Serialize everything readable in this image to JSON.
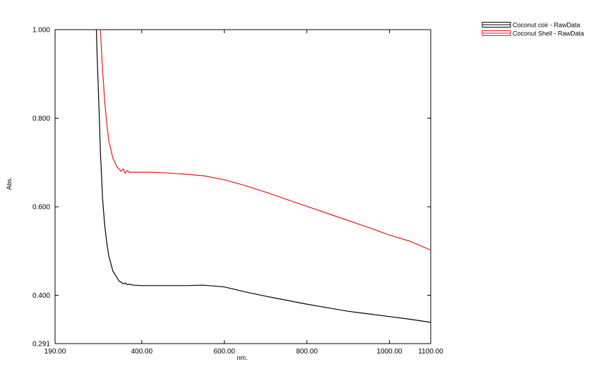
{
  "chart_data": {
    "type": "line",
    "xlabel": "nm.",
    "ylabel": "Abs.",
    "xlim": [
      190,
      1100
    ],
    "ylim": [
      0.291,
      1.0
    ],
    "x_ticks": [
      {
        "value": 190,
        "label": "190.00"
      },
      {
        "value": 400,
        "label": "400.00"
      },
      {
        "value": 600,
        "label": "600.00"
      },
      {
        "value": 800,
        "label": "800.00"
      },
      {
        "value": 1000,
        "label": "1000.00"
      },
      {
        "value": 1100,
        "label": "1100.00"
      }
    ],
    "y_ticks": [
      {
        "value": 0.291,
        "label": "0.291"
      },
      {
        "value": 0.4,
        "label": "0.400"
      },
      {
        "value": 0.6,
        "label": "0.600"
      },
      {
        "value": 0.8,
        "label": "0.800"
      },
      {
        "value": 1.0,
        "label": "1.000"
      }
    ],
    "legend_position": "top-right, outside plot",
    "grid": false,
    "series": [
      {
        "name": "Coconut coir - RawData",
        "color": "#000000",
        "x": [
          290,
          292,
          295,
          298,
          300,
          303,
          305,
          310,
          315,
          320,
          330,
          340,
          345,
          350,
          355,
          360,
          365,
          370,
          380,
          400,
          450,
          500,
          550,
          600,
          650,
          700,
          750,
          800,
          850,
          900,
          950,
          1000,
          1050,
          1100
        ],
        "y": [
          1.0,
          0.94,
          0.86,
          0.78,
          0.72,
          0.66,
          0.62,
          0.56,
          0.52,
          0.49,
          0.455,
          0.44,
          0.432,
          0.43,
          0.426,
          0.428,
          0.424,
          0.425,
          0.423,
          0.422,
          0.422,
          0.422,
          0.423,
          0.419,
          0.408,
          0.398,
          0.389,
          0.38,
          0.372,
          0.364,
          0.358,
          0.352,
          0.346,
          0.339
        ]
      },
      {
        "name": "Coconut Shell - RawData",
        "color": "#e41a1c",
        "x": [
          300,
          302,
          305,
          308,
          310,
          315,
          320,
          325,
          330,
          335,
          340,
          345,
          350,
          355,
          360,
          365,
          370,
          380,
          400,
          420,
          450,
          500,
          550,
          600,
          650,
          700,
          750,
          800,
          850,
          900,
          950,
          1000,
          1050,
          1100
        ],
        "y": [
          1.0,
          0.96,
          0.91,
          0.87,
          0.84,
          0.79,
          0.75,
          0.73,
          0.71,
          0.7,
          0.69,
          0.685,
          0.68,
          0.685,
          0.676,
          0.682,
          0.678,
          0.678,
          0.678,
          0.678,
          0.677,
          0.674,
          0.67,
          0.661,
          0.648,
          0.633,
          0.617,
          0.601,
          0.585,
          0.569,
          0.553,
          0.536,
          0.522,
          0.502
        ]
      }
    ]
  }
}
